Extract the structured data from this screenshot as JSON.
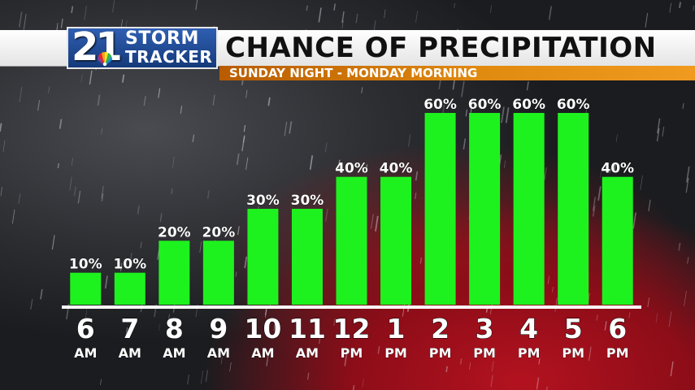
{
  "header": {
    "logo_number": "21",
    "logo_line1": "STORM",
    "logo_line2": "TRACKER",
    "title": "CHANCE OF PRECIPITATION",
    "subtitle": "SUNDAY NIGHT - MONDAY MORNING"
  },
  "colors": {
    "bar": "#1ef21e",
    "baseline": "#ffffff",
    "label": "#ffffff",
    "subtitle_bar": "#e08a10"
  },
  "chart_data": {
    "type": "bar",
    "title": "CHANCE OF PRECIPITATION",
    "subtitle": "SUNDAY NIGHT - MONDAY MORNING",
    "unit": "%",
    "categories": [
      {
        "hour": "6",
        "period": "AM"
      },
      {
        "hour": "7",
        "period": "AM"
      },
      {
        "hour": "8",
        "period": "AM"
      },
      {
        "hour": "9",
        "period": "AM"
      },
      {
        "hour": "10",
        "period": "AM"
      },
      {
        "hour": "11",
        "period": "AM"
      },
      {
        "hour": "12",
        "period": "PM"
      },
      {
        "hour": "1",
        "period": "PM"
      },
      {
        "hour": "2",
        "period": "PM"
      },
      {
        "hour": "3",
        "period": "PM"
      },
      {
        "hour": "4",
        "period": "PM"
      },
      {
        "hour": "5",
        "period": "PM"
      },
      {
        "hour": "6",
        "period": "PM"
      }
    ],
    "values": [
      10,
      10,
      20,
      20,
      30,
      30,
      40,
      40,
      60,
      60,
      60,
      60,
      40
    ],
    "value_labels": [
      "10%",
      "10%",
      "20%",
      "20%",
      "30%",
      "30%",
      "40%",
      "40%",
      "60%",
      "60%",
      "60%",
      "60%",
      "40%"
    ],
    "ylim": [
      0,
      100
    ],
    "grid": false,
    "legend": "none"
  }
}
